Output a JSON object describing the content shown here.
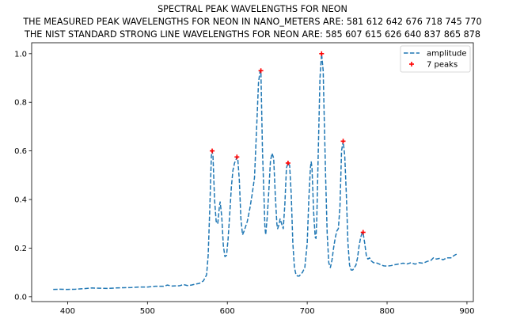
{
  "chart_data": {
    "type": "line",
    "title_lines": [
      "SPECTRAL PEAK WAVELENGTHS FOR NEON",
      "THE MEASURED PEAK WAVELENGTHS FOR NEON IN NANO_METERS ARE: 581 612 642 676 718 745 770",
      "THE NIST STANDARD STRONG LINE WAVELENGTHS FOR NEON ARE: 585 607 615 626 640 837 865 878"
    ],
    "xlabel": "",
    "ylabel": "",
    "xlim": [
      355,
      908
    ],
    "ylim": [
      -0.02,
      1.045
    ],
    "x_ticks": [
      400,
      500,
      600,
      700,
      800,
      900
    ],
    "y_ticks": [
      0.0,
      0.2,
      0.4,
      0.6,
      0.8,
      1.0
    ],
    "grid": false,
    "legend_position": "top-right",
    "series": [
      {
        "name": "amplitude",
        "style": "dashed-line",
        "color": "#1f77b4",
        "points": [
          [
            382,
            0.03
          ],
          [
            390,
            0.031
          ],
          [
            400,
            0.03
          ],
          [
            410,
            0.031
          ],
          [
            420,
            0.033
          ],
          [
            430,
            0.036
          ],
          [
            440,
            0.035
          ],
          [
            450,
            0.034
          ],
          [
            460,
            0.036
          ],
          [
            470,
            0.037
          ],
          [
            480,
            0.038
          ],
          [
            490,
            0.04
          ],
          [
            500,
            0.04
          ],
          [
            510,
            0.043
          ],
          [
            520,
            0.043
          ],
          [
            525,
            0.048
          ],
          [
            530,
            0.044
          ],
          [
            540,
            0.045
          ],
          [
            545,
            0.05
          ],
          [
            550,
            0.046
          ],
          [
            555,
            0.048
          ],
          [
            560,
            0.052
          ],
          [
            565,
            0.055
          ],
          [
            570,
            0.065
          ],
          [
            574,
            0.09
          ],
          [
            576,
            0.17
          ],
          [
            578,
            0.36
          ],
          [
            580,
            0.58
          ],
          [
            581,
            0.6
          ],
          [
            582,
            0.58
          ],
          [
            584,
            0.4
          ],
          [
            586,
            0.31
          ],
          [
            588,
            0.3
          ],
          [
            590,
            0.37
          ],
          [
            591,
            0.39
          ],
          [
            593,
            0.33
          ],
          [
            595,
            0.21
          ],
          [
            597,
            0.165
          ],
          [
            599,
            0.17
          ],
          [
            601,
            0.24
          ],
          [
            603,
            0.34
          ],
          [
            605,
            0.45
          ],
          [
            607,
            0.52
          ],
          [
            609,
            0.55
          ],
          [
            611,
            0.565
          ],
          [
            612,
            0.575
          ],
          [
            613,
            0.57
          ],
          [
            615,
            0.48
          ],
          [
            617,
            0.32
          ],
          [
            619,
            0.255
          ],
          [
            621,
            0.27
          ],
          [
            623,
            0.29
          ],
          [
            625,
            0.31
          ],
          [
            628,
            0.36
          ],
          [
            631,
            0.42
          ],
          [
            634,
            0.49
          ],
          [
            637,
            0.72
          ],
          [
            639,
            0.88
          ],
          [
            641,
            0.93
          ],
          [
            642,
            0.93
          ],
          [
            644,
            0.6
          ],
          [
            646,
            0.4
          ],
          [
            647,
            0.29
          ],
          [
            648,
            0.255
          ],
          [
            650,
            0.33
          ],
          [
            652,
            0.44
          ],
          [
            654,
            0.56
          ],
          [
            656,
            0.59
          ],
          [
            658,
            0.57
          ],
          [
            660,
            0.42
          ],
          [
            662,
            0.3
          ],
          [
            663,
            0.28
          ],
          [
            665,
            0.3
          ],
          [
            666,
            0.32
          ],
          [
            668,
            0.3
          ],
          [
            670,
            0.28
          ],
          [
            672,
            0.38
          ],
          [
            674,
            0.53
          ],
          [
            676,
            0.55
          ],
          [
            678,
            0.54
          ],
          [
            680,
            0.42
          ],
          [
            682,
            0.22
          ],
          [
            684,
            0.12
          ],
          [
            686,
            0.09
          ],
          [
            688,
            0.085
          ],
          [
            690,
            0.085
          ],
          [
            694,
            0.1
          ],
          [
            697,
            0.12
          ],
          [
            700,
            0.22
          ],
          [
            702,
            0.4
          ],
          [
            704,
            0.53
          ],
          [
            705,
            0.555
          ],
          [
            706,
            0.53
          ],
          [
            708,
            0.35
          ],
          [
            710,
            0.245
          ],
          [
            711,
            0.24
          ],
          [
            712,
            0.32
          ],
          [
            714,
            0.62
          ],
          [
            716,
            0.9
          ],
          [
            718,
            1.0
          ],
          [
            720,
            0.93
          ],
          [
            721,
            0.78
          ],
          [
            723,
            0.5
          ],
          [
            725,
            0.26
          ],
          [
            727,
            0.14
          ],
          [
            729,
            0.12
          ],
          [
            731,
            0.15
          ],
          [
            733,
            0.2
          ],
          [
            735,
            0.24
          ],
          [
            737,
            0.27
          ],
          [
            739,
            0.28
          ],
          [
            741,
            0.37
          ],
          [
            743,
            0.6
          ],
          [
            745,
            0.64
          ],
          [
            747,
            0.58
          ],
          [
            749,
            0.42
          ],
          [
            751,
            0.22
          ],
          [
            753,
            0.13
          ],
          [
            755,
            0.11
          ],
          [
            757,
            0.11
          ],
          [
            759,
            0.12
          ],
          [
            761,
            0.13
          ],
          [
            763,
            0.16
          ],
          [
            765,
            0.21
          ],
          [
            767,
            0.245
          ],
          [
            769,
            0.265
          ],
          [
            770,
            0.262
          ],
          [
            772,
            0.22
          ],
          [
            774,
            0.17
          ],
          [
            776,
            0.155
          ],
          [
            778,
            0.16
          ],
          [
            780,
            0.148
          ],
          [
            783,
            0.14
          ],
          [
            786,
            0.14
          ],
          [
            790,
            0.135
          ],
          [
            793,
            0.13
          ],
          [
            796,
            0.127
          ],
          [
            800,
            0.126
          ],
          [
            805,
            0.128
          ],
          [
            810,
            0.132
          ],
          [
            815,
            0.135
          ],
          [
            820,
            0.138
          ],
          [
            825,
            0.135
          ],
          [
            830,
            0.14
          ],
          [
            835,
            0.134
          ],
          [
            840,
            0.14
          ],
          [
            845,
            0.138
          ],
          [
            850,
            0.145
          ],
          [
            855,
            0.15
          ],
          [
            858,
            0.16
          ],
          [
            862,
            0.155
          ],
          [
            866,
            0.158
          ],
          [
            870,
            0.152
          ],
          [
            875,
            0.16
          ],
          [
            880,
            0.16
          ],
          [
            884,
            0.17
          ],
          [
            887,
            0.175
          ]
        ]
      },
      {
        "name": "7 peaks",
        "style": "marker-plus",
        "color": "#ff0000",
        "x": [
          581,
          612,
          642,
          676,
          718,
          745,
          770
        ],
        "y": [
          0.6,
          0.575,
          0.93,
          0.55,
          1.0,
          0.64,
          0.265
        ]
      }
    ]
  }
}
